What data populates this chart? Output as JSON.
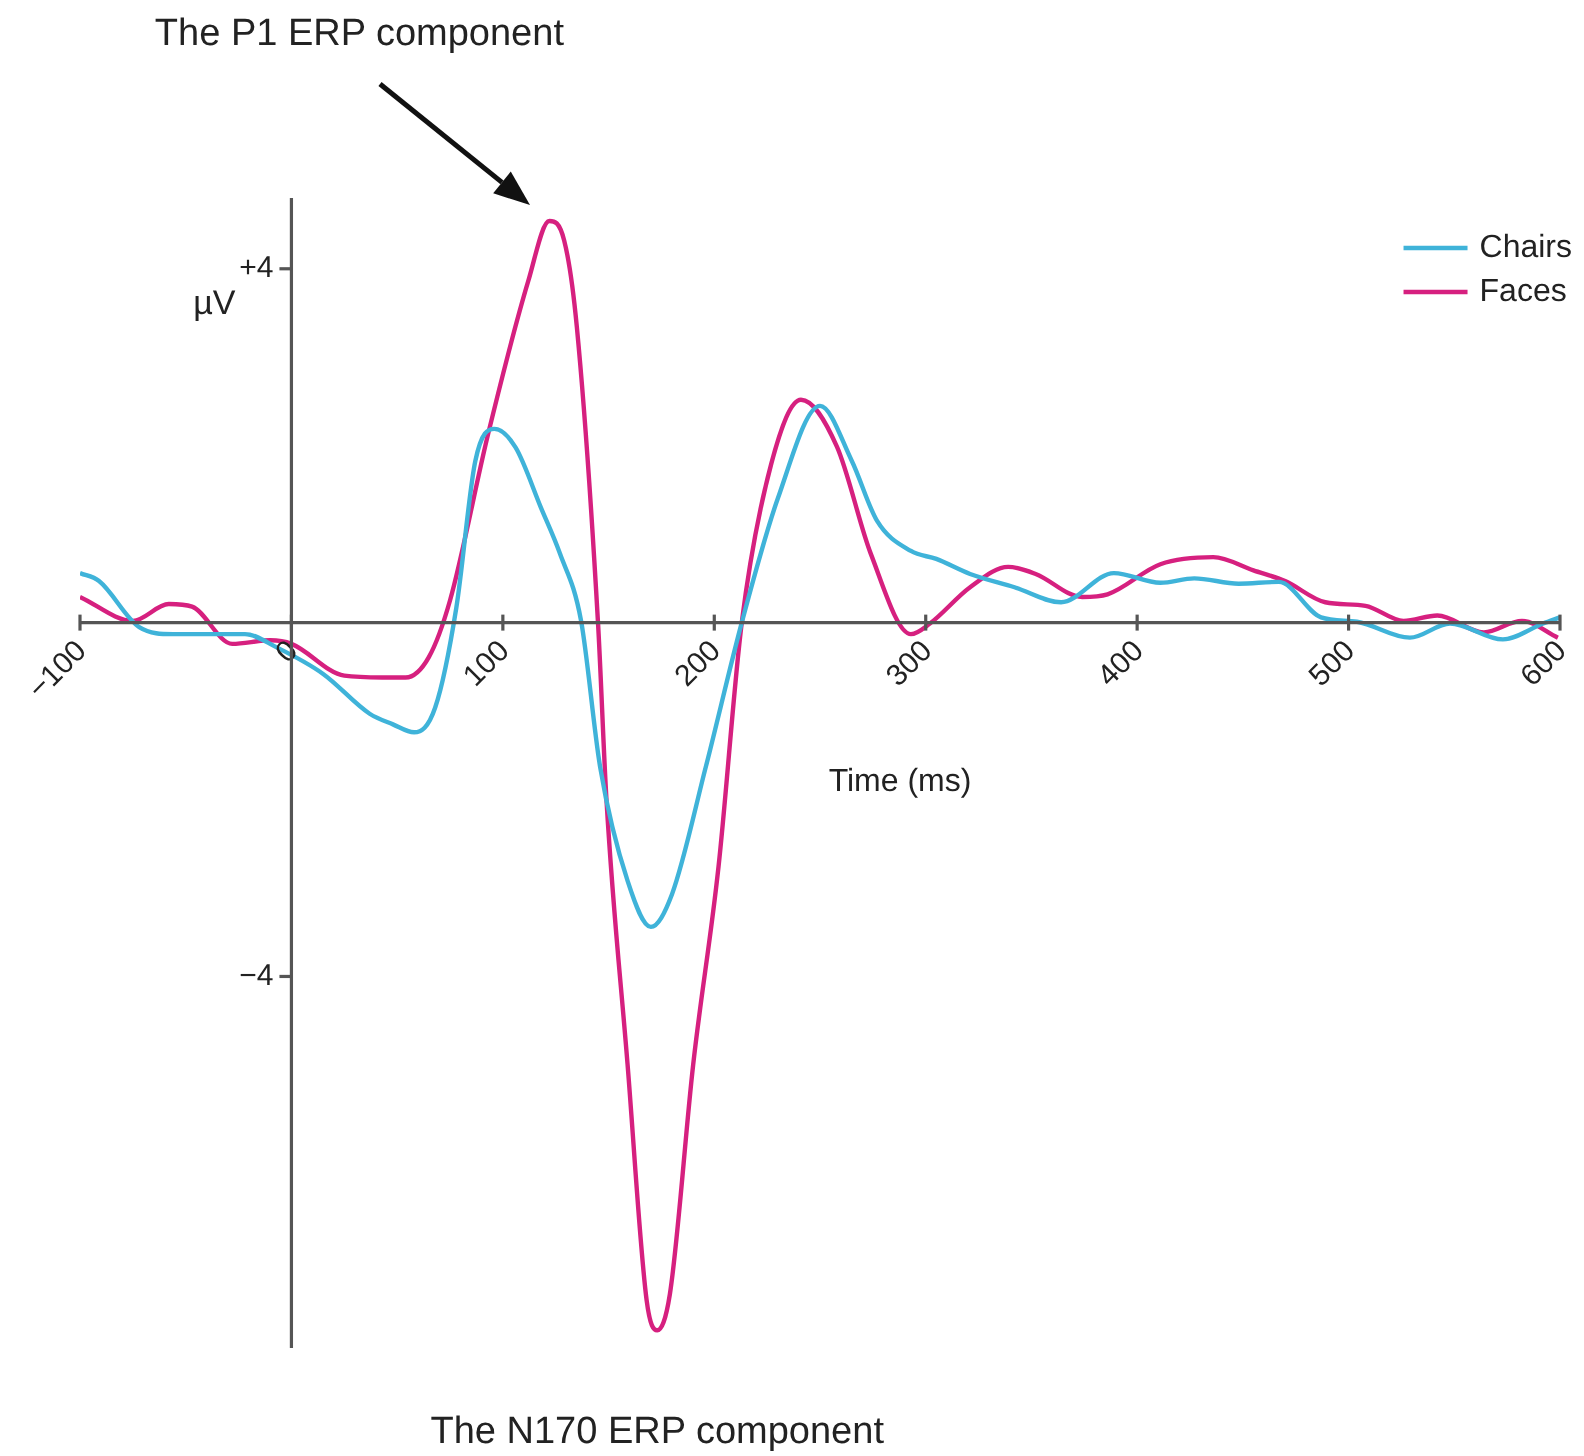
{
  "chart_data": {
    "type": "line",
    "xlabel": "Time (ms)",
    "ylabel": "µV",
    "xlim": [
      -100,
      600
    ],
    "xticks": [
      {
        "value": -100,
        "label": "−100"
      },
      0,
      100,
      200,
      300,
      400,
      500,
      600
    ],
    "ylim": [
      -8.2,
      4.8
    ],
    "yticks": [
      {
        "value": 4,
        "label": "+4"
      },
      {
        "value": -4,
        "label": "−4"
      }
    ],
    "legend": "top right",
    "annotations": [
      "The P1 ERP component",
      "The N170 ERP component"
    ],
    "series": [
      {
        "name": "Chairs",
        "color": "#3fb3d9",
        "x": [
          -100,
          -91,
          -72,
          -56,
          -38,
          -22,
          -7,
          15,
          37,
          48,
          58,
          68,
          78,
          87,
          96,
          106,
          118,
          127,
          137,
          146,
          159,
          170,
          180,
          196,
          213,
          230,
          250,
          265,
          277,
          293,
          305,
          321,
          342,
          364,
          389,
          411,
          427,
          448,
          467,
          487,
          504,
          529,
          548,
          573,
          592,
          600
        ],
        "values": [
          0.56,
          0.47,
          -0.05,
          -0.13,
          -0.13,
          -0.13,
          -0.28,
          -0.58,
          -1.03,
          -1.15,
          -1.24,
          -0.96,
          0.17,
          1.83,
          2.19,
          1.98,
          1.3,
          0.78,
          0.02,
          -1.63,
          -2.92,
          -3.44,
          -3.07,
          -1.63,
          0,
          1.4,
          2.45,
          1.83,
          1.15,
          0.81,
          0.72,
          0.55,
          0.4,
          0.23,
          0.56,
          0.45,
          0.5,
          0.44,
          0.46,
          0.06,
          0.01,
          -0.17,
          -0.01,
          -0.19,
          -0.01,
          0.06
        ]
      },
      {
        "name": "Faces",
        "color": "#d6207f",
        "x": [
          -100,
          -75,
          -58,
          -47,
          -28,
          -10,
          0,
          25,
          43,
          54,
          65,
          75,
          93,
          112,
          122,
          129,
          135,
          145,
          149,
          159,
          168,
          173,
          179,
          190,
          202,
          213,
          227,
          241,
          258,
          274,
          293,
          302,
          321,
          339,
          352,
          374,
          386,
          411,
          436,
          455,
          470,
          489,
          508,
          526,
          542,
          564,
          582,
          599
        ],
        "values": [
          0.29,
          0.02,
          0.21,
          0.18,
          -0.24,
          -0.2,
          -0.24,
          -0.6,
          -0.62,
          -0.62,
          -0.39,
          0.25,
          2.13,
          3.86,
          4.54,
          4.32,
          3.34,
          0,
          -2.0,
          -5.0,
          -7.66,
          -8.0,
          -7.59,
          -5.0,
          -2.76,
          0,
          1.8,
          2.52,
          1.99,
          0.78,
          -0.13,
          -0.01,
          0.4,
          0.63,
          0.55,
          0.29,
          0.32,
          0.66,
          0.74,
          0.59,
          0.47,
          0.23,
          0.19,
          0.02,
          0.08,
          -0.11,
          0.02,
          -0.17
        ]
      }
    ]
  }
}
